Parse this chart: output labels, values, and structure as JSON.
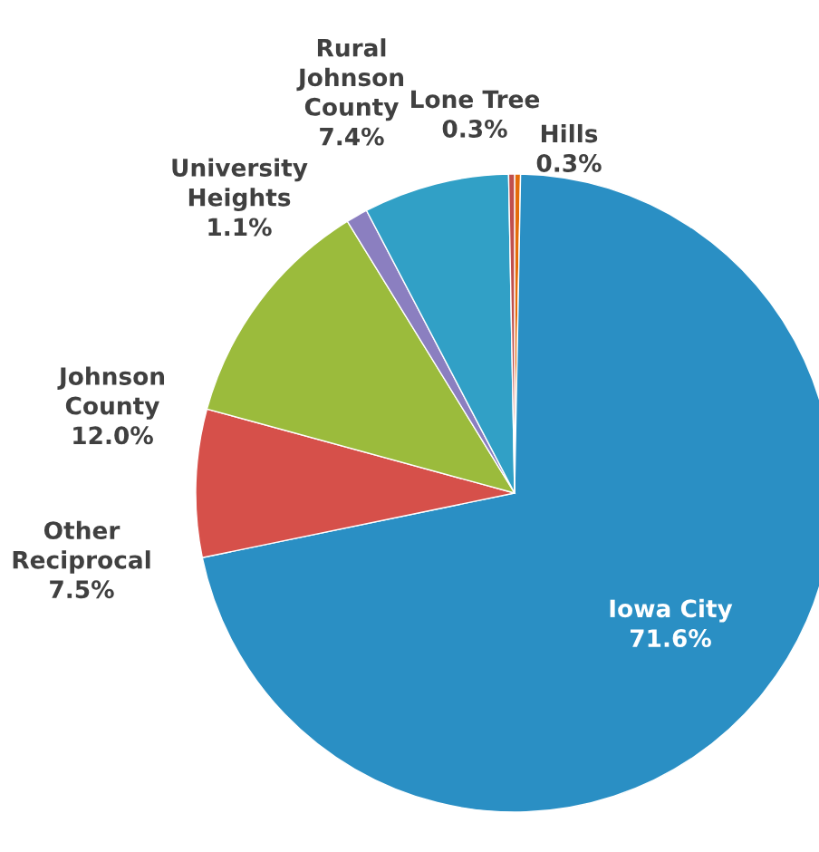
{
  "chart_data": {
    "type": "pie",
    "categories": [
      "Hills",
      "Iowa City",
      "Other\nReciprocal",
      "Johnson\nCounty",
      "University\nHeights",
      "Rural\nJohnson\nCounty",
      "Lone Tree"
    ],
    "values": [
      0.3,
      71.6,
      7.5,
      12.0,
      1.1,
      7.4,
      0.3
    ],
    "value_labels": [
      "0.3%",
      "71.6%",
      "7.5%",
      "12.0%",
      "1.1%",
      "7.4%",
      "0.3%"
    ],
    "colors": [
      "#e46c0a",
      "#2a8fc4",
      "#d6504a",
      "#9bbb3c",
      "#8b7fc0",
      "#31a0c6",
      "#c0504d"
    ]
  }
}
